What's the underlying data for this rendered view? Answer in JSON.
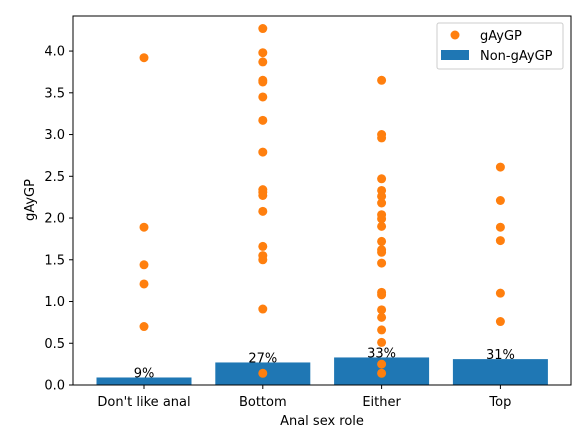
{
  "chart_data": {
    "type": "bar+scatter",
    "xlabel": "Anal sex role",
    "ylabel": "gAyGP",
    "ylim": [
      0,
      4.42
    ],
    "yticks": [
      "0.0",
      "0.5",
      "1.0",
      "1.5",
      "2.0",
      "2.5",
      "3.0",
      "3.5",
      "4.0"
    ],
    "categories": [
      "Don't like anal",
      "Bottom",
      "Either",
      "Top"
    ],
    "grid": false,
    "legend_position": "top-right",
    "colors": {
      "bar": "#1f77b4",
      "scatter": "#ff7f0e"
    },
    "series": [
      {
        "name": "Non-gAyGP",
        "kind": "bar",
        "values": [
          0.09,
          0.27,
          0.33,
          0.31
        ],
        "labels": [
          "9%",
          "27%",
          "33%",
          "31%"
        ]
      },
      {
        "name": "gAyGP",
        "kind": "scatter",
        "points": [
          [
            3.92,
            1.89,
            1.44,
            1.21,
            0.7
          ],
          [
            4.27,
            3.98,
            3.87,
            3.65,
            3.63,
            3.45,
            3.17,
            2.79,
            2.34,
            2.31,
            2.27,
            2.08,
            1.66,
            1.55,
            1.5,
            0.91,
            0.14
          ],
          [
            3.65,
            3.0,
            2.96,
            2.47,
            2.33,
            2.26,
            2.18,
            2.04,
            1.99,
            1.9,
            1.72,
            1.62,
            1.59,
            1.46,
            1.11,
            1.08,
            0.9,
            0.81,
            0.66,
            0.51,
            0.25,
            0.14
          ],
          [
            2.61,
            2.21,
            1.89,
            1.73,
            1.1,
            0.76
          ]
        ]
      }
    ]
  }
}
